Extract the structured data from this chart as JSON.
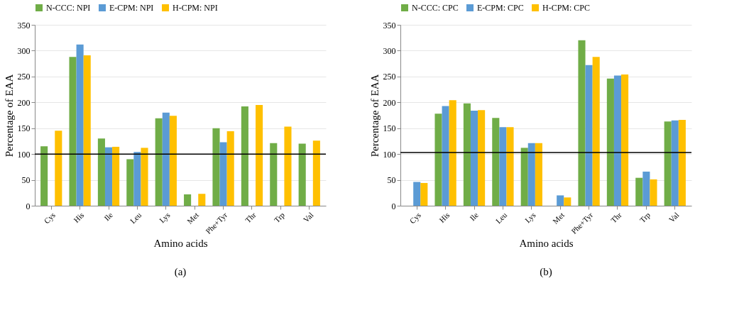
{
  "chart_data": [
    {
      "type": "bar",
      "xlabel": "Amino acids",
      "ylabel": "Percentage of EAA",
      "annotations": [
        "(a)"
      ],
      "categories": [
        "Cys",
        "His",
        "Ile",
        "Leu",
        "Lys",
        "Met",
        "Phe+Tyr",
        "Thr",
        "Trp",
        "Val"
      ],
      "series": [
        {
          "name": "N-CCC: NPI",
          "color": "#70ad47",
          "values": [
            115,
            288,
            130,
            90,
            169,
            22,
            150,
            192,
            121,
            120
          ]
        },
        {
          "name": "E-CPM: NPI",
          "color": "#5b9bd5",
          "values": [
            null,
            312,
            113,
            104,
            180,
            null,
            123,
            null,
            null,
            null
          ]
        },
        {
          "name": "H-CPM: NPI",
          "color": "#ffc000",
          "values": [
            145,
            291,
            114,
            112,
            174,
            23,
            144,
            195,
            153,
            126
          ]
        }
      ],
      "ylim": [
        0,
        350
      ],
      "yticks": [
        0,
        50,
        100,
        150,
        200,
        250,
        300,
        350
      ],
      "grid": "y",
      "legend": "top",
      "ref_lines": [
        {
          "axis": "y",
          "value": 100,
          "color": "#000000"
        }
      ]
    },
    {
      "type": "bar",
      "xlabel": "Amino acids",
      "ylabel": "Percentage of EAA",
      "annotations": [
        "(b)"
      ],
      "categories": [
        "Cys",
        "His",
        "Ile",
        "Leu",
        "Lys",
        "Met",
        "Phe+Tyr",
        "Thr",
        "Trp",
        "Val"
      ],
      "series": [
        {
          "name": "N-CCC: CPC",
          "color": "#70ad47",
          "values": [
            null,
            178,
            198,
            170,
            112,
            null,
            320,
            246,
            54,
            163
          ]
        },
        {
          "name": "E-CPM: CPC",
          "color": "#5b9bd5",
          "values": [
            46,
            193,
            184,
            152,
            121,
            20,
            272,
            252,
            66,
            165
          ]
        },
        {
          "name": "H-CPM: CPC",
          "color": "#ffc000",
          "values": [
            44,
            204,
            185,
            152,
            121,
            16,
            288,
            254,
            51,
            166
          ]
        }
      ],
      "ylim": [
        0,
        350
      ],
      "yticks": [
        0,
        50,
        100,
        150,
        200,
        250,
        300,
        350
      ],
      "grid": "y",
      "legend": "top",
      "ref_lines": [
        {
          "axis": "y",
          "value": 103,
          "color": "#000000"
        }
      ]
    }
  ]
}
